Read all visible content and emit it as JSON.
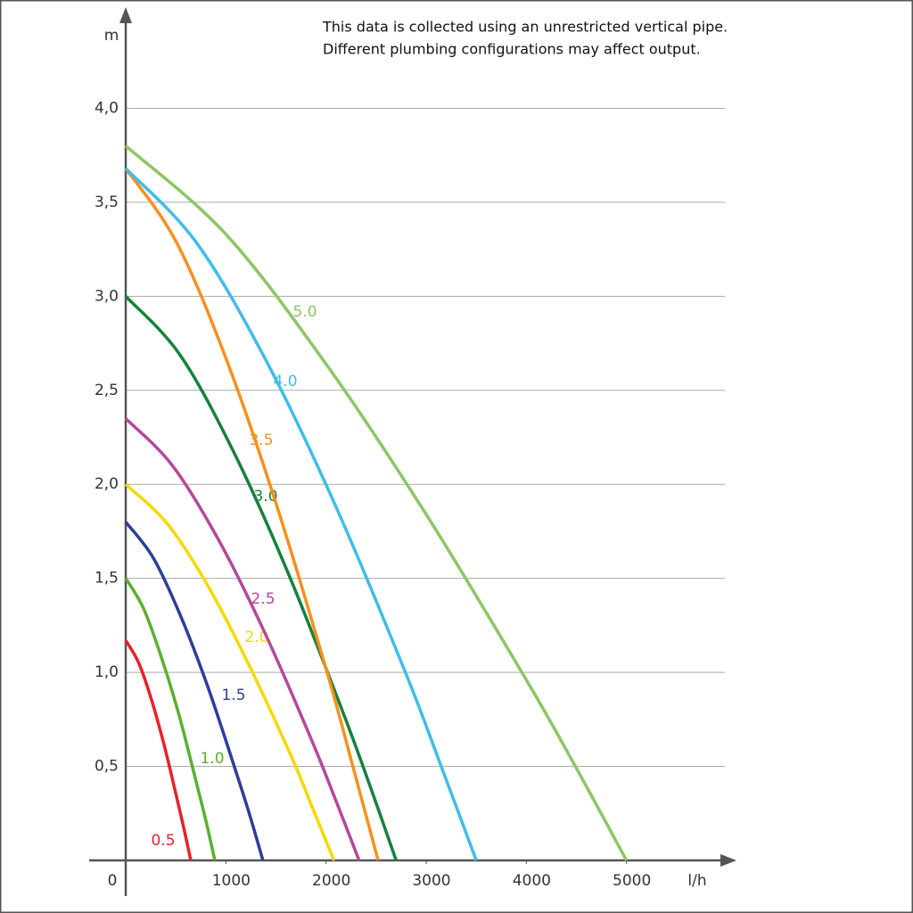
{
  "chart_data": {
    "type": "line",
    "note": [
      "This data is collected using an unrestricted vertical pipe.",
      "Different plumbing configurations may affect output."
    ],
    "x_label": "l/h",
    "y_label": "m",
    "xlim": [
      0,
      6000
    ],
    "ylim": [
      0,
      4.5
    ],
    "xticks": [
      0,
      1000,
      2000,
      3000,
      4000,
      5000
    ],
    "yticks": [
      {
        "value": 0.5,
        "label": "0,5"
      },
      {
        "value": 1.0,
        "label": "1,0"
      },
      {
        "value": 1.5,
        "label": "1,5"
      },
      {
        "value": 2.0,
        "label": "2,0"
      },
      {
        "value": 2.5,
        "label": "2,5"
      },
      {
        "value": 3.0,
        "label": "3,0"
      },
      {
        "value": 3.5,
        "label": "3,5"
      },
      {
        "value": 4.0,
        "label": "4,0"
      }
    ],
    "grid": true,
    "series": [
      {
        "name": "0.5",
        "color": "#e8202a",
        "x": [
          0,
          130,
          260,
          390,
          520,
          585,
          650
        ],
        "values": [
          1.17,
          1.05,
          0.85,
          0.6,
          0.31,
          0.16,
          0
        ]
      },
      {
        "name": "1.0",
        "color": "#5ab031",
        "x": [
          0,
          178,
          356,
          534,
          712,
          801,
          890
        ],
        "values": [
          1.5,
          1.34,
          1.08,
          0.77,
          0.4,
          0.21,
          0
        ]
      },
      {
        "name": "1.5",
        "color": "#2b3f98",
        "x": [
          0,
          274,
          548,
          822,
          1096,
          1233,
          1370
        ],
        "values": [
          1.8,
          1.61,
          1.3,
          0.92,
          0.48,
          0.25,
          0
        ]
      },
      {
        "name": "2.0",
        "color": "#f5d800",
        "x": [
          0,
          416,
          832,
          1248,
          1664,
          1872,
          2080
        ],
        "values": [
          2.0,
          1.79,
          1.45,
          1.02,
          0.54,
          0.27,
          0
        ]
      },
      {
        "name": "2.5",
        "color": "#b5489b",
        "x": [
          0,
          466,
          932,
          1398,
          1864,
          2097,
          2330
        ],
        "values": [
          2.35,
          2.1,
          1.7,
          1.2,
          0.63,
          0.32,
          0
        ]
      },
      {
        "name": "3.0",
        "color": "#14823c",
        "x": [
          0,
          540,
          1080,
          1620,
          2160,
          2430,
          2700
        ],
        "values": [
          3.0,
          2.69,
          2.17,
          1.53,
          0.8,
          0.41,
          0
        ]
      },
      {
        "name": "3.5",
        "color": "#f7901e",
        "x": [
          0,
          504,
          1008,
          1512,
          2016,
          2268,
          2520
        ],
        "values": [
          3.68,
          3.29,
          2.66,
          1.88,
          0.99,
          0.5,
          0
        ]
      },
      {
        "name": "4.0",
        "color": "#3fbdea",
        "x": [
          0,
          700,
          1400,
          2100,
          2800,
          3150,
          3500
        ],
        "values": [
          3.68,
          3.29,
          2.66,
          1.88,
          0.99,
          0.5,
          0
        ]
      },
      {
        "name": "5.0",
        "color": "#8dc665",
        "x": [
          0,
          1000,
          2000,
          3000,
          4000,
          4500,
          5000
        ],
        "values": [
          3.8,
          3.33,
          2.64,
          1.84,
          0.96,
          0.49,
          0
        ]
      }
    ]
  }
}
